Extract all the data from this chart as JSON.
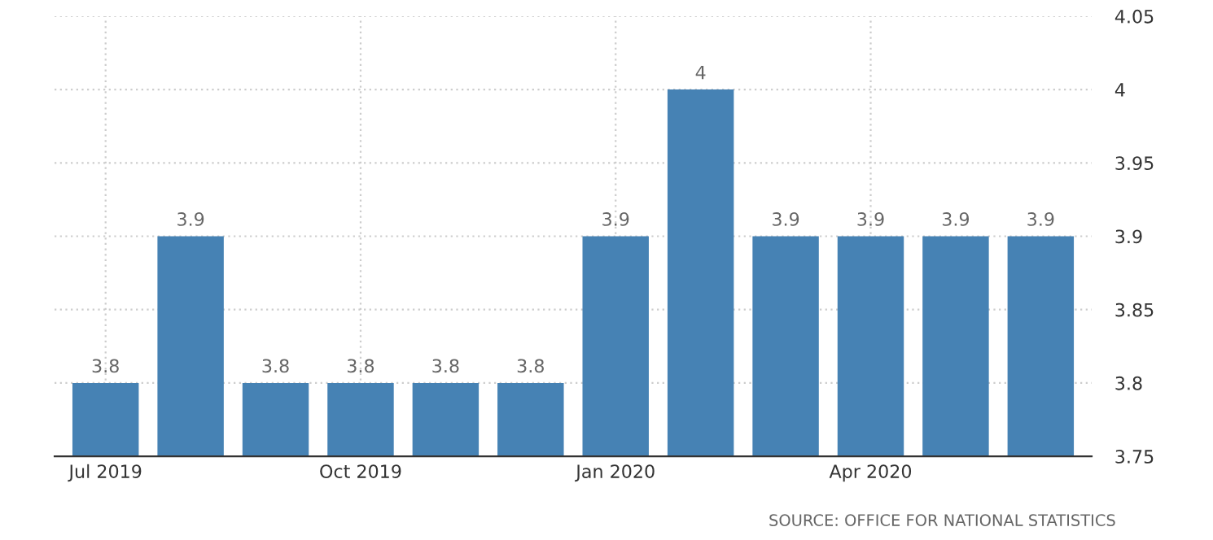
{
  "chart_data": {
    "type": "bar",
    "categories": [
      "Jul 2019",
      null,
      null,
      "Oct 2019",
      null,
      null,
      "Jan 2020",
      null,
      null,
      "Apr 2020",
      null,
      null
    ],
    "values": [
      3.8,
      3.9,
      3.8,
      3.8,
      3.8,
      3.8,
      3.9,
      4,
      3.9,
      3.9,
      3.9,
      3.9
    ],
    "color": "#4682b4",
    "ylim": [
      3.75,
      4.05
    ],
    "yticks": [
      3.75,
      3.8,
      3.85,
      3.9,
      3.95,
      4,
      4.05
    ],
    "grid": true,
    "data_labels": true,
    "annotations": [
      "SOURCE: OFFICE FOR NATIONAL STATISTICS"
    ]
  }
}
